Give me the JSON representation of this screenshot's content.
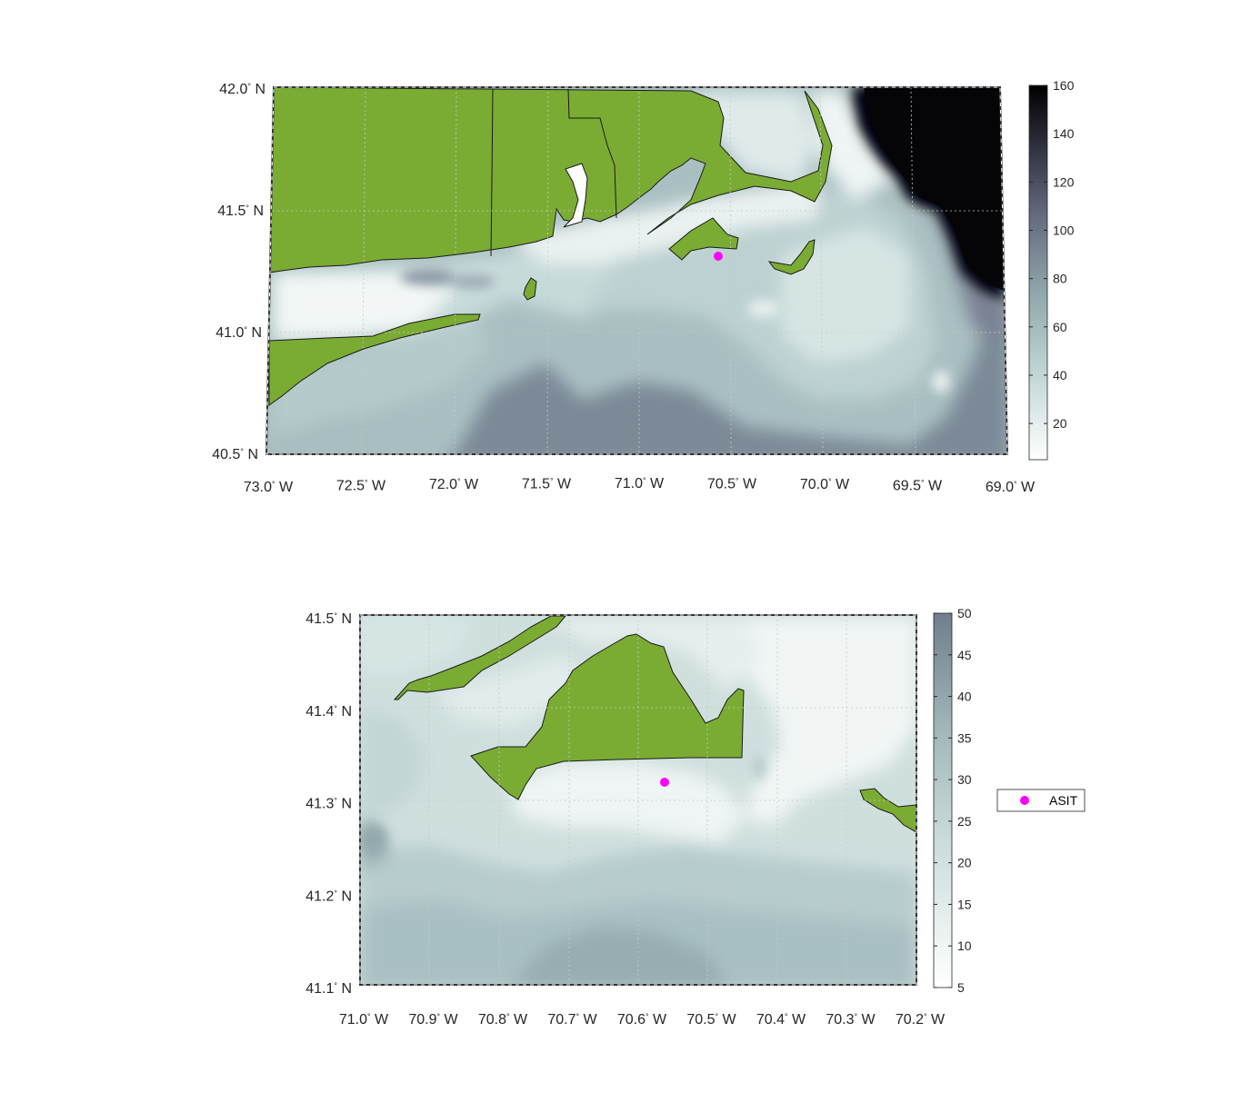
{
  "chart_data": [
    {
      "type": "heatmap",
      "title": "",
      "xlabel": "",
      "ylabel": "",
      "xlim": [
        -73.0,
        -69.0
      ],
      "ylim": [
        40.5,
        42.0
      ],
      "x_ticks": [
        "73.0",
        "72.5",
        "72.0",
        "71.5",
        "71.0",
        "70.5",
        "70.0",
        "69.5",
        "69.0"
      ],
      "x_tick_suffix": "W",
      "y_ticks": [
        "42.0",
        "41.5",
        "41.0",
        "40.5"
      ],
      "y_tick_suffix": "N",
      "colorbar": {
        "ticks": [
          "160",
          "140",
          "120",
          "100",
          "80",
          "60",
          "40",
          "20"
        ],
        "range": [
          5,
          160
        ]
      },
      "grid": true,
      "land_color": "#7aac33",
      "markers": [
        {
          "name": "ASIT",
          "lon": -70.567,
          "lat": 41.325,
          "color": "#ff00ff"
        }
      ]
    },
    {
      "type": "heatmap",
      "title": "",
      "xlabel": "",
      "ylabel": "",
      "xlim": [
        -71.0,
        -70.2
      ],
      "ylim": [
        41.1,
        41.5
      ],
      "x_ticks": [
        "71.0",
        "70.9",
        "70.8",
        "70.7",
        "70.6",
        "70.5",
        "70.4",
        "70.3",
        "70.2"
      ],
      "x_tick_suffix": "W",
      "y_ticks": [
        "41.5",
        "41.4",
        "41.3",
        "41.2",
        "41.1"
      ],
      "y_tick_suffix": "N",
      "colorbar": {
        "ticks": [
          "50",
          "45",
          "40",
          "35",
          "30",
          "25",
          "20",
          "15",
          "10",
          "5"
        ],
        "range": [
          5,
          50
        ]
      },
      "grid": true,
      "land_color": "#7aac33",
      "markers": [
        {
          "name": "ASIT",
          "lon": -70.567,
          "lat": 41.325,
          "color": "#ff00ff"
        }
      ],
      "legend": {
        "placement": "right",
        "entries": [
          "ASIT"
        ]
      }
    }
  ]
}
